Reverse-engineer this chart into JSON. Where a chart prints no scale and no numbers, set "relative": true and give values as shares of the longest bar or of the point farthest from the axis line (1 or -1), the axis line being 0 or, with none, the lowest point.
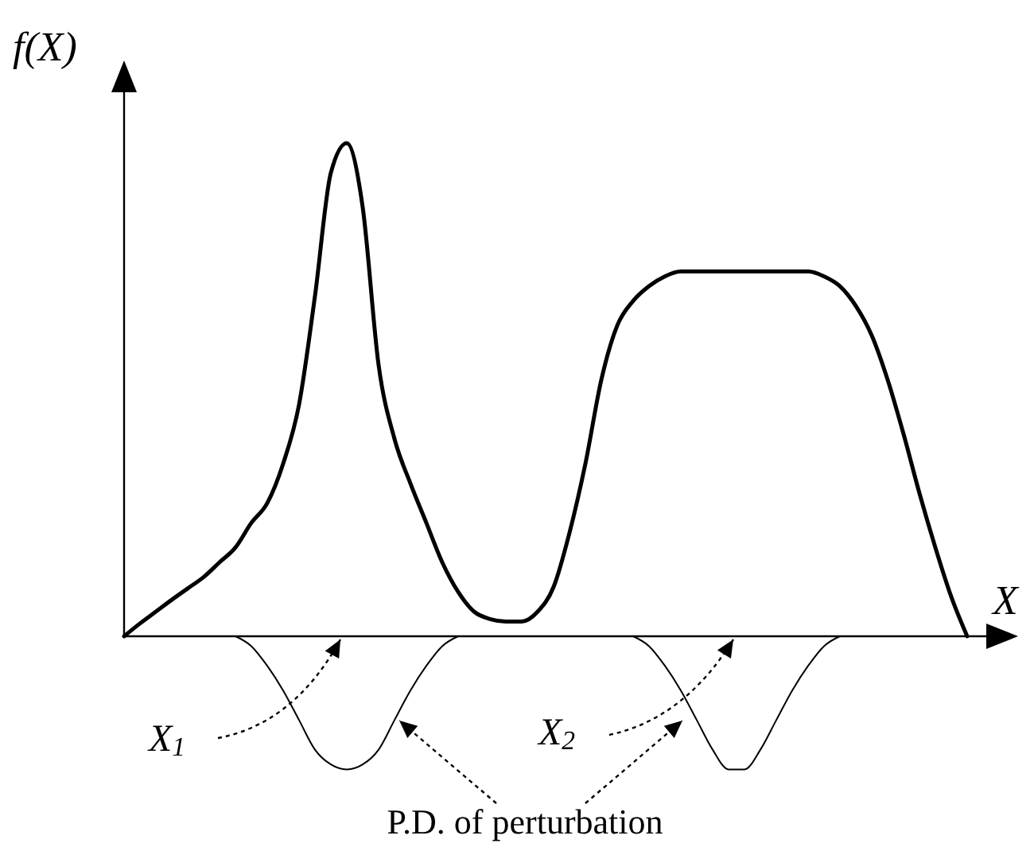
{
  "chart_data": {
    "type": "line",
    "relative": true,
    "xlabel": "X",
    "ylabel": "f(X)",
    "categories": [
      null,
      null,
      null,
      null,
      null,
      null,
      null,
      null,
      null,
      null,
      null,
      null,
      null,
      null,
      null,
      null,
      null,
      null,
      null,
      null,
      null,
      null,
      null,
      null,
      null,
      null,
      null,
      null,
      null,
      null,
      null,
      null,
      null,
      null,
      null,
      null,
      null,
      null,
      null,
      null,
      null,
      null,
      null,
      null,
      null,
      null,
      null,
      null,
      null,
      null,
      null,
      null,
      null,
      null,
      null,
      null,
      null
    ],
    "series": [
      {
        "color": "#000000",
        "values": [
          0,
          0.026,
          0.05,
          0.074,
          0.097,
          0.12,
          0.15,
          0.18,
          0.23,
          0.27,
          0.35,
          0.47,
          0.69,
          0.94,
          1,
          0.87,
          0.55,
          0.4,
          0.31,
          0.23,
          0.15,
          0.09,
          0.05,
          0.035,
          0.03,
          0.03,
          0.05,
          0.1,
          0.21,
          0.35,
          0.52,
          0.63,
          0.68,
          0.71,
          0.73,
          0.74,
          0.74,
          0.74,
          0.74,
          0.74,
          0.74,
          0.74,
          0.74,
          0.74,
          0.73,
          0.71,
          0.67,
          0.61,
          0.52,
          0.41,
          0.29,
          0.18,
          0.08,
          0,
          null,
          null,
          null
        ]
      },
      {
        "color": "#000000",
        "values": [
          null,
          null,
          null,
          null,
          null,
          null,
          null,
          0,
          -0.02,
          -0.06,
          -0.11,
          -0.17,
          -0.23,
          -0.26,
          -0.27,
          -0.26,
          -0.23,
          -0.17,
          -0.11,
          -0.06,
          -0.02,
          0,
          null,
          null,
          null,
          null,
          null,
          null,
          null,
          null,
          null,
          null,
          null,
          null,
          null,
          null,
          null,
          null,
          null,
          null,
          null,
          null,
          null,
          null,
          null,
          null,
          null,
          null,
          null,
          null,
          null,
          null,
          null,
          null,
          null,
          null,
          null
        ]
      },
      {
        "color": "#000000",
        "values": [
          null,
          null,
          null,
          null,
          null,
          null,
          null,
          null,
          null,
          null,
          null,
          null,
          null,
          null,
          null,
          null,
          null,
          null,
          null,
          null,
          null,
          null,
          null,
          null,
          null,
          null,
          null,
          null,
          null,
          null,
          null,
          null,
          0,
          -0.02,
          -0.06,
          -0.11,
          -0.17,
          -0.23,
          -0.27,
          -0.27,
          -0.23,
          -0.17,
          -0.11,
          -0.06,
          -0.02,
          0,
          null,
          null,
          null,
          null,
          null,
          null,
          null,
          null,
          null,
          null,
          null
        ]
      }
    ],
    "annotations": [
      "X$_{1}$",
      "X$_{2}$",
      "P.D. of perturbation"
    ]
  }
}
